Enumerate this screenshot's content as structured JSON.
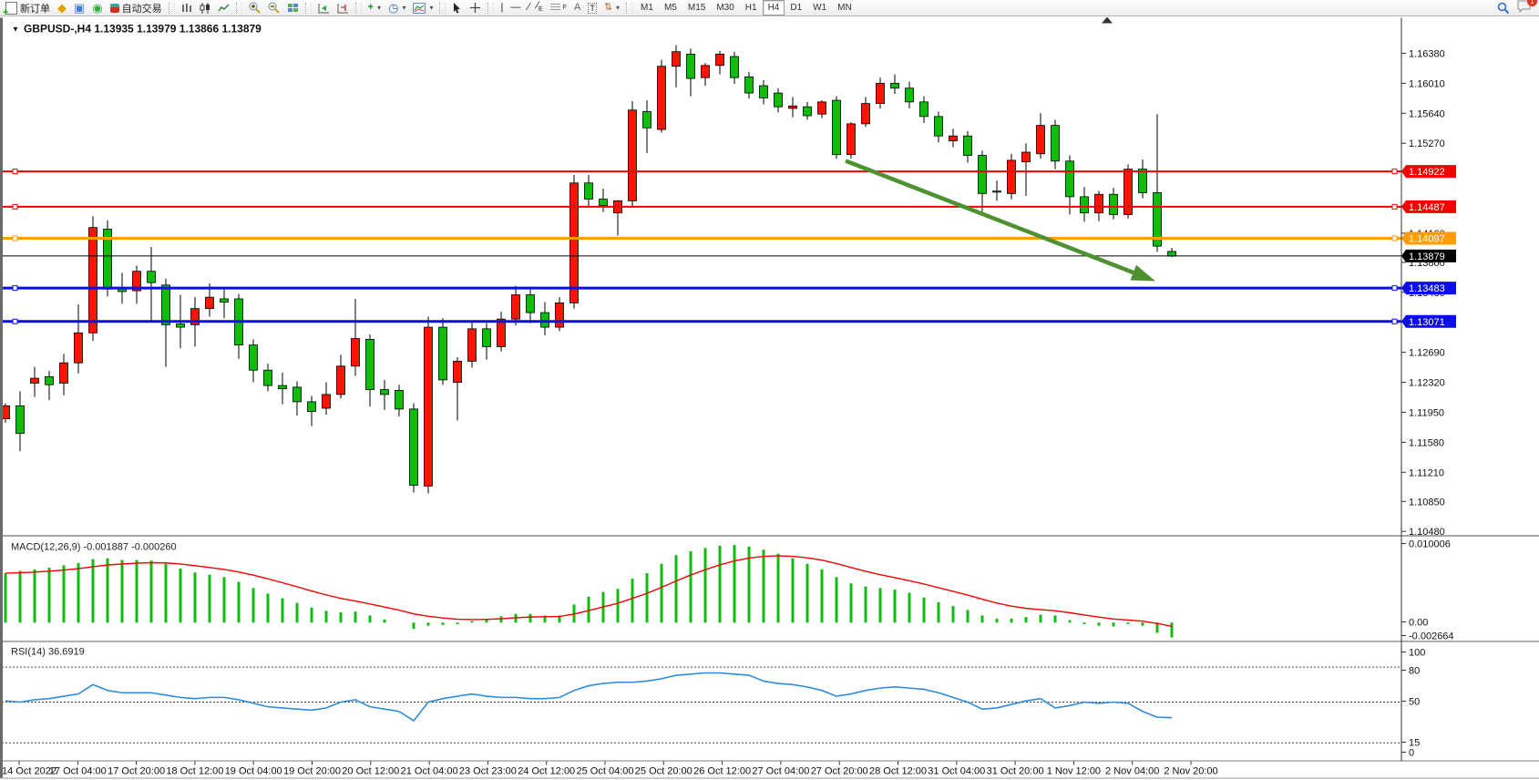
{
  "toolbar": {
    "new_order": "新订单",
    "auto_trading": "自动交易",
    "timeframes": [
      "M1",
      "M5",
      "M15",
      "M30",
      "H1",
      "H4",
      "D1",
      "W1",
      "MN"
    ],
    "active_timeframe": "H4",
    "notification_badge": "1"
  },
  "chart": {
    "symbol_title": "GBPUSD-,H4",
    "ohlc_text": "1.13935 1.13979 1.13866 1.13879"
  },
  "chart_data": {
    "type": "candlestick",
    "symbol": "GBPUSD",
    "timeframe": "H4",
    "note": "red = up candle, green = down candle (Chinese color convention)",
    "up_color": "#f81505",
    "down_color": "#0cbe0c",
    "outline_color": "#000000",
    "price_axis_ticks": [
      "1.16380",
      "1.16010",
      "1.15640",
      "1.15270",
      "1.14160",
      "1.13800",
      "1.13430",
      "1.12690",
      "1.12320",
      "1.11950",
      "1.11580",
      "1.11210",
      "1.10850",
      "1.10480"
    ],
    "x_labels": [
      "14 Oct 2022",
      "17 Oct 04:00",
      "17 Oct 20:00",
      "18 Oct 12:00",
      "19 Oct 04:00",
      "19 Oct 20:00",
      "20 Oct 12:00",
      "21 Oct 04:00",
      "23 Oct 23:00",
      "24 Oct 12:00",
      "25 Oct 04:00",
      "25 Oct 20:00",
      "26 Oct 12:00",
      "27 Oct 04:00",
      "27 Oct 20:00",
      "28 Oct 12:00",
      "31 Oct 04:00",
      "31 Oct 20:00",
      "1 Nov 12:00",
      "2 Nov 04:00",
      "2 Nov 20:00"
    ],
    "levels": [
      {
        "price": 1.14922,
        "label": "1.14922",
        "color": "#f40000",
        "width": 2,
        "marker": true
      },
      {
        "price": 1.14487,
        "label": "1.14487",
        "color": "#f40000",
        "width": 2,
        "marker": true
      },
      {
        "price": 1.14097,
        "label": "1.14097",
        "color": "#ff9e00",
        "width": 3,
        "marker": true
      },
      {
        "price": 1.13879,
        "label": "1.13879",
        "color": "#000000",
        "width": 1,
        "marker": false
      },
      {
        "price": 1.13483,
        "label": "1.13483",
        "color": "#0c0cf0",
        "width": 3,
        "marker": true
      },
      {
        "price": 1.13071,
        "label": "1.13071",
        "color": "#0c0cf0",
        "width": 3,
        "marker": true
      }
    ],
    "annotation_arrow": {
      "from": [
        928,
        176
      ],
      "to": [
        1268,
        308
      ],
      "color": "#4e9130"
    },
    "candles": [
      [
        1.1187,
        1.1206,
        1.1182,
        1.1203
      ],
      [
        1.1203,
        1.1221,
        1.1147,
        1.1169
      ],
      [
        1.1231,
        1.1251,
        1.1214,
        1.1237
      ],
      [
        1.1239,
        1.1246,
        1.121,
        1.1229
      ],
      [
        1.1231,
        1.1267,
        1.1216,
        1.1256
      ],
      [
        1.1256,
        1.1328,
        1.1243,
        1.1293
      ],
      [
        1.1293,
        1.1437,
        1.1283,
        1.1423
      ],
      [
        1.1421,
        1.1432,
        1.1338,
        1.1347
      ],
      [
        1.1348,
        1.1367,
        1.1329,
        1.1344
      ],
      [
        1.1345,
        1.1376,
        1.1329,
        1.1369
      ],
      [
        1.1369,
        1.1399,
        1.1306,
        1.1355
      ],
      [
        1.1352,
        1.136,
        1.1251,
        1.1303
      ],
      [
        1.1304,
        1.134,
        1.1274,
        1.13
      ],
      [
        1.1303,
        1.1337,
        1.1276,
        1.1323
      ],
      [
        1.1323,
        1.1354,
        1.1313,
        1.1337
      ],
      [
        1.1335,
        1.1347,
        1.1311,
        1.1331
      ],
      [
        1.1335,
        1.1341,
        1.1261,
        1.1278
      ],
      [
        1.1278,
        1.1285,
        1.1232,
        1.1247
      ],
      [
        1.1247,
        1.1255,
        1.1221,
        1.1228
      ],
      [
        1.1228,
        1.1244,
        1.1205,
        1.1224
      ],
      [
        1.1226,
        1.1233,
        1.1191,
        1.1208
      ],
      [
        1.1208,
        1.1215,
        1.1178,
        1.1196
      ],
      [
        1.12,
        1.1232,
        1.1192,
        1.1217
      ],
      [
        1.1217,
        1.1266,
        1.1212,
        1.1252
      ],
      [
        1.1252,
        1.1335,
        1.124,
        1.1286
      ],
      [
        1.1285,
        1.1291,
        1.1202,
        1.1223
      ],
      [
        1.1223,
        1.1235,
        1.1198,
        1.1217
      ],
      [
        1.1222,
        1.1229,
        1.119,
        1.1199
      ],
      [
        1.1199,
        1.1206,
        1.1096,
        1.1105
      ],
      [
        1.1104,
        1.1313,
        1.1095,
        1.13
      ],
      [
        1.13,
        1.1311,
        1.1229,
        1.1235
      ],
      [
        1.1232,
        1.1263,
        1.1185,
        1.1258
      ],
      [
        1.1258,
        1.1306,
        1.125,
        1.1298
      ],
      [
        1.1298,
        1.1305,
        1.126,
        1.1276
      ],
      [
        1.1276,
        1.1319,
        1.127,
        1.131
      ],
      [
        1.131,
        1.1351,
        1.1302,
        1.134
      ],
      [
        1.134,
        1.1349,
        1.1305,
        1.1318
      ],
      [
        1.1318,
        1.1331,
        1.129,
        1.13
      ],
      [
        1.13,
        1.1337,
        1.1295,
        1.133
      ],
      [
        1.133,
        1.1488,
        1.1323,
        1.1478
      ],
      [
        1.1478,
        1.1488,
        1.1448,
        1.1458
      ],
      [
        1.1458,
        1.1471,
        1.1442,
        1.145
      ],
      [
        1.1441,
        1.1457,
        1.1413,
        1.1456
      ],
      [
        1.1456,
        1.1579,
        1.1448,
        1.1568
      ],
      [
        1.1566,
        1.158,
        1.1515,
        1.1546
      ],
      [
        1.1544,
        1.163,
        1.154,
        1.1622
      ],
      [
        1.1622,
        1.1648,
        1.1596,
        1.164
      ],
      [
        1.1637,
        1.1644,
        1.1585,
        1.1607
      ],
      [
        1.1608,
        1.1626,
        1.1598,
        1.1623
      ],
      [
        1.1623,
        1.1641,
        1.1612,
        1.1637
      ],
      [
        1.1634,
        1.164,
        1.16,
        1.1608
      ],
      [
        1.1609,
        1.1615,
        1.1582,
        1.1589
      ],
      [
        1.1598,
        1.1605,
        1.1575,
        1.1583
      ],
      [
        1.1589,
        1.1595,
        1.1565,
        1.1572
      ],
      [
        1.157,
        1.1584,
        1.1559,
        1.1573
      ],
      [
        1.1572,
        1.1578,
        1.1556,
        1.1561
      ],
      [
        1.1563,
        1.158,
        1.1558,
        1.1578
      ],
      [
        1.158,
        1.1585,
        1.1508,
        1.1513
      ],
      [
        1.1513,
        1.1553,
        1.1508,
        1.1551
      ],
      [
        1.1551,
        1.1584,
        1.1547,
        1.1576
      ],
      [
        1.1576,
        1.1608,
        1.157,
        1.1601
      ],
      [
        1.1601,
        1.1612,
        1.1588,
        1.1595
      ],
      [
        1.1595,
        1.1603,
        1.157,
        1.1578
      ],
      [
        1.1578,
        1.1585,
        1.1552,
        1.156
      ],
      [
        1.156,
        1.1566,
        1.1528,
        1.1536
      ],
      [
        1.153,
        1.1545,
        1.1522,
        1.1536
      ],
      [
        1.1536,
        1.1542,
        1.1503,
        1.1512
      ],
      [
        1.1512,
        1.1518,
        1.144,
        1.1465
      ],
      [
        1.1468,
        1.1481,
        1.1456,
        1.1467
      ],
      [
        1.1465,
        1.1514,
        1.1458,
        1.1506
      ],
      [
        1.1504,
        1.1527,
        1.1462,
        1.1516
      ],
      [
        1.1514,
        1.1564,
        1.1508,
        1.1549
      ],
      [
        1.1549,
        1.1556,
        1.1495,
        1.1505
      ],
      [
        1.1505,
        1.1512,
        1.1439,
        1.1461
      ],
      [
        1.1461,
        1.1473,
        1.143,
        1.1441
      ],
      [
        1.1441,
        1.1468,
        1.1431,
        1.1464
      ],
      [
        1.1464,
        1.1472,
        1.1433,
        1.1439
      ],
      [
        1.1439,
        1.1501,
        1.1434,
        1.1495
      ],
      [
        1.1495,
        1.1507,
        1.1459,
        1.1466
      ],
      [
        1.1466,
        1.1563,
        1.1393,
        1.14
      ],
      [
        1.13935,
        1.13979,
        1.13866,
        1.13879
      ]
    ],
    "macd": {
      "label": "MACD(12,26,9)",
      "value": "-0.001887",
      "signal_value": "-0.000260",
      "axis_labels": [
        "0.010006",
        "0.00",
        "-0.002664"
      ],
      "hist_color": "#0cbe0c",
      "line_color": "#f40000",
      "histogram": [
        0.0063,
        0.0066,
        0.0068,
        0.007,
        0.0073,
        0.0076,
        0.0081,
        0.0082,
        0.008,
        0.008,
        0.0079,
        0.0075,
        0.0069,
        0.0064,
        0.0061,
        0.0058,
        0.0052,
        0.0044,
        0.0037,
        0.0031,
        0.0025,
        0.0019,
        0.0015,
        0.0013,
        0.0014,
        0.0009,
        0.0004,
        0.0,
        -0.0008,
        -0.0004,
        -0.0003,
        -0.0002,
        0.0002,
        0.0005,
        0.0008,
        0.0011,
        0.0011,
        0.0009,
        0.0009,
        0.0023,
        0.0033,
        0.0039,
        0.0043,
        0.0056,
        0.0063,
        0.0075,
        0.0086,
        0.0091,
        0.0095,
        0.0098,
        0.0099,
        0.0097,
        0.0093,
        0.0088,
        0.0082,
        0.0075,
        0.0068,
        0.0058,
        0.005,
        0.0046,
        0.0044,
        0.0042,
        0.0038,
        0.0032,
        0.0026,
        0.0021,
        0.0016,
        0.0009,
        0.0005,
        0.0005,
        0.0007,
        0.001,
        0.0009,
        0.0003,
        -0.0002,
        -0.0004,
        -0.0005,
        -0.0002,
        -0.0004,
        -0.0013,
        -0.0019
      ]
    },
    "rsi": {
      "label": "RSI(14)",
      "value": "36.6919",
      "line_color": "#2e8ce0",
      "level_lines": [
        80,
        50,
        15
      ],
      "axis_labels": [
        "100",
        "80",
        "50",
        "15",
        "0"
      ],
      "values": [
        51,
        50,
        52,
        53,
        55,
        57,
        65,
        60,
        58,
        58,
        58,
        56,
        54,
        53,
        54,
        54,
        52,
        49,
        46,
        45,
        44,
        43,
        45,
        50,
        52,
        46,
        44,
        42,
        34,
        50,
        53,
        55,
        57,
        55,
        54,
        54,
        53,
        53,
        54,
        60,
        64,
        66,
        67,
        67,
        68,
        70,
        73,
        74,
        75,
        75,
        74,
        73,
        68,
        66,
        65,
        63,
        60,
        55,
        57,
        60,
        62,
        63,
        62,
        61,
        58,
        54,
        50,
        44,
        45,
        48,
        51,
        53,
        45,
        47,
        50,
        49,
        50,
        49,
        42,
        37,
        36.7
      ]
    }
  }
}
